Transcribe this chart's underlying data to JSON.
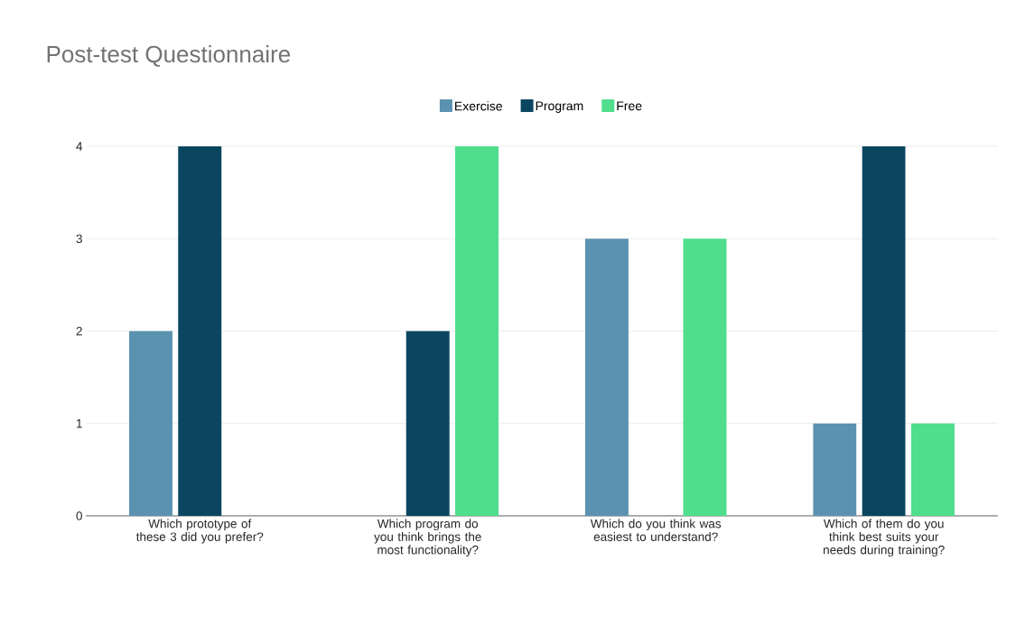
{
  "chart_data": {
    "type": "bar",
    "title": "Post-test Questionnaire",
    "categories": [
      "Which prototype of these 3 did you prefer?",
      "Which program do you think brings the most functionality?",
      "Which do you think was easiest to understand?",
      "Which of them do you think best suits your needs during training?"
    ],
    "series": [
      {
        "name": "Exercise",
        "color": "#5b92b0",
        "values": [
          2,
          0,
          3,
          1
        ]
      },
      {
        "name": "Program",
        "color": "#0b4660",
        "values": [
          4,
          2,
          0,
          4
        ]
      },
      {
        "name": "Free",
        "color": "#4ede8c",
        "values": [
          0,
          4,
          3,
          1
        ]
      }
    ],
    "ylim": [
      0,
      4
    ],
    "yticks": [
      0,
      1,
      2,
      3,
      4
    ],
    "grid": "y",
    "legend": "top"
  }
}
